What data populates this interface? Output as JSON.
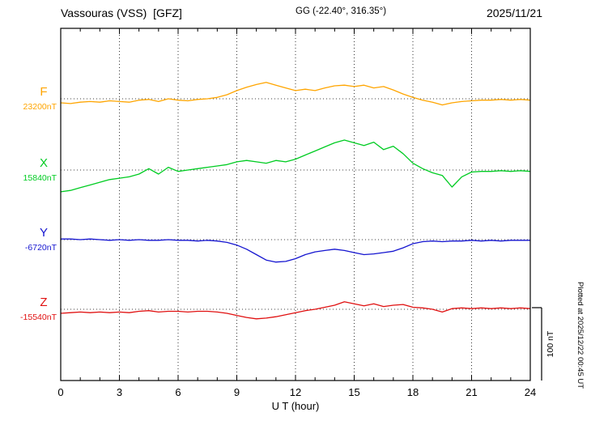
{
  "header": {
    "title": "Vassouras (VSS)  [GFZ]",
    "coords": "GG (-22.40°, 316.35°)",
    "date": "2025/11/21"
  },
  "axes": {
    "xlabel": "U T (hour)",
    "xticks": [
      0,
      3,
      6,
      9,
      12,
      15,
      18,
      21,
      24
    ],
    "x_range": [
      0,
      24
    ]
  },
  "scale_bar": {
    "label": "100 nT",
    "nT": 100
  },
  "right_note": "Plotted at 2025/12/22 00:45 UT",
  "chart_data": {
    "type": "line",
    "title": "Vassouras (VSS) [GFZ] magnetogram 2025/11/21",
    "xlabel": "U T (hour)",
    "x_range": [
      0,
      24
    ],
    "sample_step_hours": 0.5,
    "grid": "dotted vertical every 3 h; dotted horizontal baseline per component",
    "scale": {
      "label": "100 nT",
      "nT_per_bar": 100
    },
    "series": [
      {
        "name": "F",
        "label": "F",
        "base_label": "23200nT",
        "baseline_nT": 23200,
        "color": "#ffa500",
        "offsets_nT": [
          -6,
          -7,
          -5,
          -4,
          -5,
          -3,
          -4,
          -5,
          -2,
          -1,
          -4,
          0,
          -2,
          -3,
          -1,
          0,
          2,
          6,
          12,
          17,
          21,
          24,
          20,
          16,
          12,
          14,
          12,
          16,
          19,
          20,
          18,
          20,
          16,
          18,
          13,
          7,
          2,
          -2,
          -5,
          -9,
          -6,
          -4,
          -3,
          -2,
          -2,
          -1,
          -2,
          -1,
          -2
        ]
      },
      {
        "name": "X",
        "label": "X",
        "base_label": "15840nT",
        "baseline_nT": 15840,
        "color": "#00cc22",
        "offsets_nT": [
          -32,
          -30,
          -26,
          -22,
          -18,
          -14,
          -12,
          -10,
          -6,
          2,
          -6,
          4,
          -2,
          0,
          2,
          4,
          6,
          8,
          12,
          14,
          12,
          10,
          14,
          12,
          16,
          22,
          28,
          34,
          40,
          44,
          40,
          36,
          41,
          30,
          35,
          24,
          10,
          2,
          -4,
          -8,
          -25,
          -10,
          -3,
          -2,
          -2,
          -1,
          -2,
          -1,
          -2
        ]
      },
      {
        "name": "Y",
        "label": "Y",
        "base_label": "-6720nT",
        "baseline_nT": -6720,
        "color": "#1515d0",
        "offsets_nT": [
          1,
          1,
          0,
          1,
          0,
          -1,
          0,
          -1,
          0,
          -1,
          -1,
          0,
          -1,
          -1,
          -2,
          -1,
          -2,
          -4,
          -8,
          -14,
          -22,
          -30,
          -33,
          -32,
          -28,
          -22,
          -18,
          -16,
          -14,
          -16,
          -19,
          -22,
          -21,
          -19,
          -17,
          -12,
          -6,
          -3,
          -2,
          -3,
          -2,
          -2,
          -1,
          -2,
          -1,
          -2,
          -1,
          -1,
          -1
        ]
      },
      {
        "name": "Z",
        "label": "Z",
        "base_label": "-15540nT",
        "baseline_nT": -15540,
        "color": "#e01010",
        "offsets_nT": [
          -6,
          -5,
          -4,
          -5,
          -4,
          -5,
          -4,
          -5,
          -3,
          -2,
          -4,
          -3,
          -3,
          -4,
          -3,
          -3,
          -4,
          -6,
          -9,
          -12,
          -14,
          -13,
          -11,
          -8,
          -5,
          -2,
          0,
          3,
          6,
          11,
          8,
          5,
          8,
          4,
          6,
          7,
          3,
          2,
          0,
          -4,
          1,
          2,
          1,
          2,
          1,
          2,
          1,
          2,
          1
        ]
      }
    ]
  }
}
